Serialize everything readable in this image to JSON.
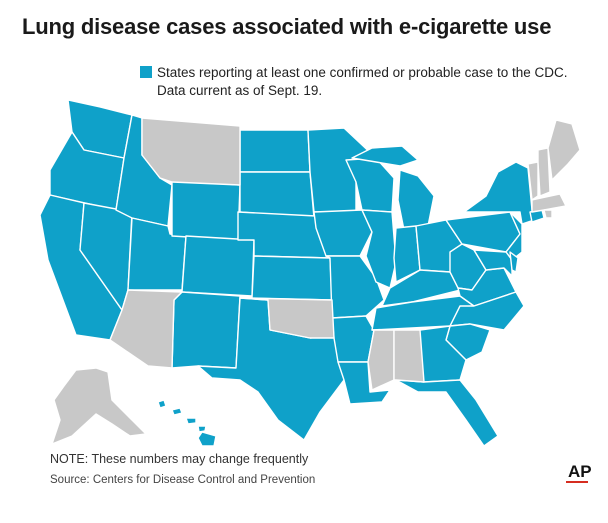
{
  "title": "Lung disease cases associated with e-cigarette use",
  "legend": {
    "line1": "States reporting at least one confirmed or probable case to the CDC.",
    "line2": "Data current as of Sept. 19.",
    "colors": {
      "reporting": "#0fa1c9",
      "not_reporting": "#c8c8c8"
    }
  },
  "note": "NOTE: These numbers may change frequently",
  "source": "Source: Centers for Disease Control and Prevention",
  "logo": "AP",
  "map": {
    "reporting": [
      "WA",
      "OR",
      "CA",
      "NV",
      "ID",
      "UT",
      "WY",
      "CO",
      "NM",
      "ND",
      "SD",
      "NE",
      "KS",
      "TX",
      "MN",
      "IA",
      "MO",
      "AR",
      "LA",
      "WI",
      "IL",
      "MI",
      "IN",
      "OH",
      "KY",
      "TN",
      "GA",
      "FL",
      "SC",
      "NC",
      "VA",
      "WV",
      "PA",
      "NY",
      "NJ",
      "DE",
      "MD",
      "CT",
      "HI"
    ],
    "not_reporting": [
      "MT",
      "AZ",
      "OK",
      "MS",
      "AL",
      "ME",
      "NH",
      "VT",
      "MA",
      "RI",
      "AK"
    ]
  }
}
